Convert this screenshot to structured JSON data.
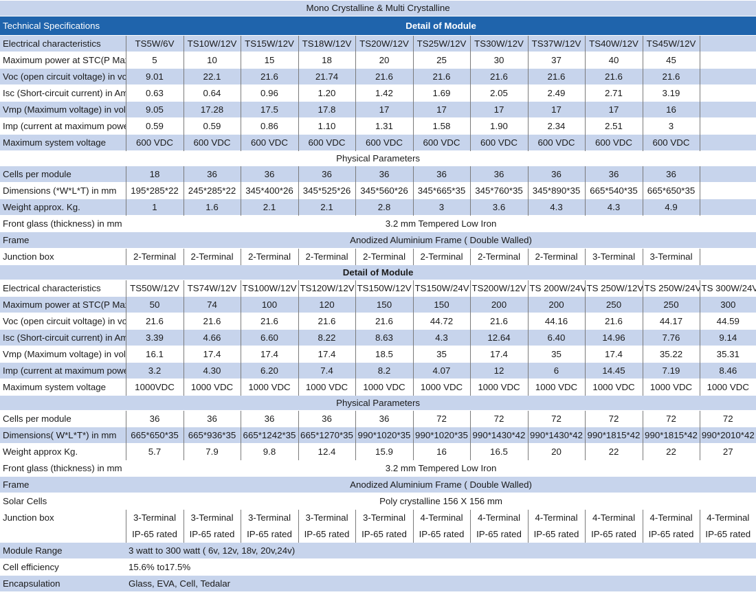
{
  "title": "Mono Crystalline & Multi Crystalline",
  "header": {
    "left": "Technical Specifications",
    "center": "Detail of Module"
  },
  "section1": {
    "models_label": "Electrical characteristics",
    "models": [
      "TS5W/6V",
      "TS10W/12V",
      "TS15W/12V",
      "TS18W/12V",
      "TS20W/12V",
      "TS25W/12V",
      "TS30W/12V",
      "TS37W/12V",
      "TS40W/12V",
      "TS45W/12V",
      ""
    ],
    "electrical": [
      {
        "label": "Maximum power at STC(P Max)",
        "values": [
          "5",
          "10",
          "15",
          "18",
          "20",
          "25",
          "30",
          "37",
          "40",
          "45",
          ""
        ]
      },
      {
        "label": "Voc (open circuit voltage) in volts",
        "values": [
          "9.01",
          "22.1",
          "21.6",
          "21.74",
          "21.6",
          "21.6",
          "21.6",
          "21.6",
          "21.6",
          "21.6",
          ""
        ]
      },
      {
        "label": "Isc (Short-circuit current) in Amps",
        "values": [
          "0.63",
          "0.64",
          "0.96",
          "1.20",
          "1.42",
          "1.69",
          "2.05",
          "2.49",
          "2.71",
          "3.19",
          ""
        ]
      },
      {
        "label": "Vmp (Maximum voltage) in volts",
        "values": [
          "9.05",
          "17.28",
          "17.5",
          "17.8",
          "17",
          "17",
          "17",
          "17",
          "17",
          "16",
          ""
        ]
      },
      {
        "label": "Imp (current at maximum power)",
        "values": [
          "0.59",
          "0.59",
          "0.86",
          "1.10",
          "1.31",
          "1.58",
          "1.90",
          "2.34",
          "2.51",
          "3",
          ""
        ]
      },
      {
        "label": "Maximum system voltage",
        "values": [
          "600 VDC",
          "600 VDC",
          "600 VDC",
          "600 VDC",
          "600 VDC",
          "600 VDC",
          "600 VDC",
          "600 VDC",
          "600 VDC",
          "600 VDC",
          ""
        ]
      }
    ],
    "physical_title": "Physical Parameters",
    "physical": [
      {
        "label": "Cells per module",
        "values": [
          "18",
          "36",
          "36",
          "36",
          "36",
          "36",
          "36",
          "36",
          "36",
          "36",
          ""
        ]
      },
      {
        "label": "Dimensions (*W*L*T) in mm",
        "values": [
          "195*285*22",
          "245*285*22",
          "345*400*26",
          "345*525*26",
          "345*560*26",
          "345*665*35",
          "345*760*35",
          "345*890*35",
          "665*540*35",
          "665*650*35",
          ""
        ]
      },
      {
        "label": "Weight approx. Kg.",
        "values": [
          "1",
          "1.6",
          "2.1",
          "2.1",
          "2.8",
          "3",
          "3.6",
          "4.3",
          "4.3",
          "4.9",
          ""
        ]
      }
    ],
    "front_glass": {
      "label": "Front glass (thickness) in mm",
      "value": "3.2 mm Tempered Low Iron"
    },
    "frame": {
      "label": "Frame",
      "value": "Anodized Aluminium Frame ( Double Walled)"
    },
    "junction": {
      "label": "Junction box",
      "values": [
        "2-Terminal",
        "2-Terminal",
        "2-Terminal",
        "2-Terminal",
        "2-Terminal",
        "2-Terminal",
        "2-Terminal",
        "2-Terminal",
        "3-Terminal",
        "3-Terminal",
        ""
      ]
    }
  },
  "section2": {
    "subtitle": "Detail of Module",
    "models_label": "Electrical characteristics",
    "models": [
      "TS50W/12V",
      "TS74W/12V",
      "TS100W/12V",
      "TS120W/12V",
      "TS150W/12V",
      "TS150W/24V",
      "TS200W/12V",
      "TS 200W/24V",
      "TS 250W/12V",
      "TS 250W/24V",
      "TS 300W/24V"
    ],
    "electrical": [
      {
        "label": "Maximum power at STC(P Max)",
        "values": [
          "50",
          "74",
          "100",
          "120",
          "150",
          "150",
          "200",
          "200",
          "250",
          "250",
          "300"
        ]
      },
      {
        "label": "Voc (open circuit voltage) in volts",
        "values": [
          "21.6",
          "21.6",
          "21.6",
          "21.6",
          "21.6",
          "44.72",
          "21.6",
          "44.16",
          "21.6",
          "44.17",
          "44.59"
        ]
      },
      {
        "label": "Isc (Short-circuit current) in Amps",
        "values": [
          "3.39",
          "4.66",
          "6.60",
          "8.22",
          "8.63",
          "4.3",
          "12.64",
          "6.40",
          "14.96",
          "7.76",
          "9.14"
        ]
      },
      {
        "label": "Vmp (Maximum voltage) in volts",
        "values": [
          "16.1",
          "17.4",
          "17.4",
          "17.4",
          "18.5",
          "35",
          "17.4",
          "35",
          "17.4",
          "35.22",
          "35.31"
        ]
      },
      {
        "label": "Imp (current at maximum power)",
        "values": [
          "3.2",
          "4.30",
          "6.20",
          "7.4",
          "8.2",
          "4.07",
          "12",
          "6",
          "14.45",
          "7.19",
          "8.46"
        ]
      },
      {
        "label": "Maximum system voltage",
        "values": [
          "1000VDC",
          "1000 VDC",
          "1000 VDC",
          "1000 VDC",
          "1000 VDC",
          "1000 VDC",
          "1000 VDC",
          "1000 VDC",
          "1000 VDC",
          "1000 VDC",
          "1000 VDC"
        ]
      }
    ],
    "physical_title": "Physical Parameters",
    "physical": [
      {
        "label": "Cells per module",
        "values": [
          "36",
          "36",
          "36",
          "36",
          "36",
          "72",
          "72",
          "72",
          "72",
          "72",
          "72"
        ]
      },
      {
        "label": "Dimensions( W*L*T*) in mm",
        "values": [
          "665*650*35",
          "665*936*35",
          "665*1242*35",
          "665*1270*35",
          "990*1020*35",
          "990*1020*35",
          "990*1430*42",
          "990*1430*42",
          "990*1815*42",
          "990*1815*42",
          "990*2010*42"
        ]
      },
      {
        "label": "Weight approx Kg.",
        "values": [
          "5.7",
          "7.9",
          "9.8",
          "12.4",
          "15.9",
          "16",
          "16.5",
          "20",
          "22",
          "22",
          "27"
        ]
      }
    ],
    "front_glass": {
      "label": "Front glass (thickness) in mm",
      "value": "3.2 mm Tempered Low Iron"
    },
    "frame": {
      "label": "Frame",
      "value": "Anodized Aluminium Frame ( Double Walled)"
    },
    "solar_cells": {
      "label": "Solar Cells",
      "value": "Poly crystalline 156 X 156 mm"
    },
    "junction": {
      "label": "Junction box",
      "values": [
        "3-Terminal",
        "3-Terminal",
        "3-Terminal",
        "3-Terminal",
        "3-Terminal",
        "4-Terminal",
        "4-Terminal",
        "4-Terminal",
        "4-Terminal",
        "4-Terminal",
        "4-Terminal"
      ]
    },
    "ip_rating": {
      "label": "",
      "values": [
        "IP-65 rated",
        "IP-65 rated",
        "IP-65 rated",
        "IP-65 rated",
        "IP-65 rated",
        "IP-65 rated",
        "IP-65 rated",
        "IP-65 rated",
        "IP-65 rated",
        "IP-65 rated",
        "IP-65 rated"
      ]
    }
  },
  "footer": [
    {
      "label": "Module Range",
      "value": "3 watt to 300 watt ( 6v, 12v, 18v, 20v,24v)"
    },
    {
      "label": "Cell efficiency",
      "value": "15.6% to17.5%"
    },
    {
      "label": "Encapsulation",
      "value": "Glass, EVA, Cell, Tedalar"
    }
  ],
  "colors": {
    "band": "#c7d4ec",
    "header": "#1f64ac",
    "divider": "#7a7a7a"
  }
}
